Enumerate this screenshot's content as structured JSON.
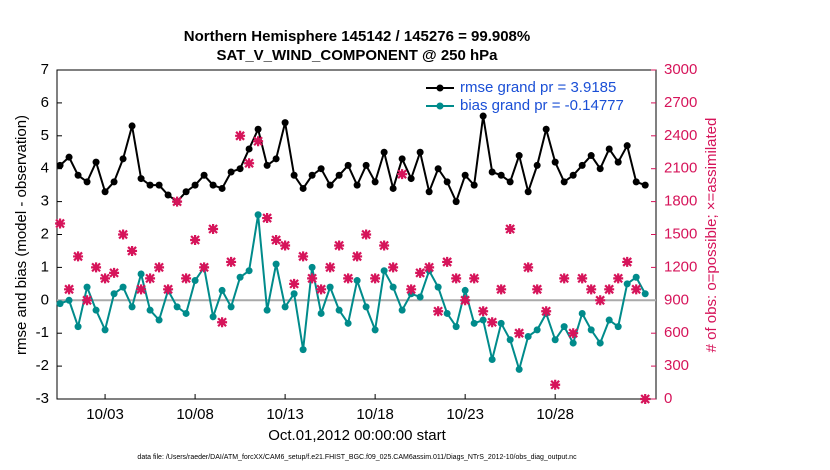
{
  "chart_data": {
    "type": "line",
    "title": [
      "Northern Hemisphere 145142 / 145276 = 99.908%",
      "SAT_V_WIND_COMPONENT @ 250 hPa"
    ],
    "xlabel": "Oct.01,2012 00:00:00 start",
    "ylabel": "rmse and bias (model - observation)",
    "y2label": "# of obs: o=possible; ×=assimilated",
    "footnote": "data file: /Users/raeder/DAI/ATM_forcXX/CAM6_setup/f.e21.FHIST_BGC.f09_025.CAM6assim.011/Diags_NTrS_2012-10/obs_diag_output.nc",
    "x": [
      -0.5,
      0,
      0.5,
      1,
      1.5,
      2,
      2.5,
      3,
      3.5,
      4,
      4.5,
      5,
      5.5,
      6,
      6.5,
      7,
      7.5,
      8,
      8.5,
      9,
      9.5,
      10,
      10.5,
      11,
      11.5,
      12,
      12.5,
      13,
      13.5,
      14,
      14.5,
      15,
      15.5,
      16,
      16.5,
      17,
      17.5,
      18,
      18.5,
      19,
      19.5,
      20,
      20.5,
      21,
      21.5,
      22,
      22.5,
      23,
      23.5,
      24,
      24.5,
      25,
      25.5,
      26,
      26.5,
      27,
      27.5,
      28,
      28.5,
      29,
      29.5,
      30,
      30.5,
      31,
      31.5,
      32
    ],
    "xlim": [
      -0.67,
      32.6
    ],
    "xticks": [
      {
        "value": 2,
        "label": "10/03"
      },
      {
        "value": 7,
        "label": "10/08"
      },
      {
        "value": 12,
        "label": "10/13"
      },
      {
        "value": 17,
        "label": "10/18"
      },
      {
        "value": 22,
        "label": "10/23"
      },
      {
        "value": 27,
        "label": "10/28"
      }
    ],
    "ylim": [
      -3,
      7
    ],
    "yticks": [
      -3,
      -2,
      -1,
      0,
      1,
      2,
      3,
      4,
      5,
      6,
      7
    ],
    "y2lim": [
      0,
      3000
    ],
    "y2ticks": [
      0,
      300,
      600,
      900,
      1200,
      1500,
      1800,
      2100,
      2400,
      2700,
      3000
    ],
    "legend": "upper right",
    "series": [
      {
        "name": "rmse grand pr = 3.9185",
        "color": "#000000",
        "values": [
          4.1,
          4.35,
          3.8,
          3.6,
          4.2,
          3.3,
          3.6,
          4.3,
          5.3,
          3.7,
          3.5,
          3.5,
          3.2,
          3.0,
          3.3,
          3.5,
          3.8,
          3.5,
          3.4,
          3.9,
          4.0,
          4.6,
          5.2,
          4.1,
          4.3,
          5.4,
          3.8,
          3.4,
          3.8,
          4.0,
          3.5,
          3.8,
          4.1,
          3.5,
          4.1,
          3.6,
          4.5,
          3.4,
          4.3,
          3.7,
          4.5,
          3.3,
          4.0,
          3.6,
          3.0,
          3.8,
          3.5,
          5.6,
          3.9,
          3.8,
          3.6,
          4.4,
          3.3,
          4.1,
          5.2,
          4.2,
          3.6,
          3.8,
          4.1,
          4.4,
          4.0,
          4.6,
          4.2,
          4.7,
          3.6,
          3.5
        ]
      },
      {
        "name": "bias grand pr = -0.14777",
        "color": "#008b8b",
        "values": [
          -0.1,
          0,
          -0.8,
          0.4,
          -0.3,
          -0.9,
          0.2,
          0.4,
          -0.2,
          0.8,
          -0.3,
          -0.6,
          0.3,
          -0.2,
          -0.4,
          0.6,
          1.0,
          -0.5,
          0.3,
          -0.2,
          0.7,
          0.9,
          2.6,
          -0.3,
          1.1,
          -0.2,
          0.2,
          -1.5,
          1.0,
          -0.4,
          0.4,
          -0.3,
          -0.7,
          0.6,
          -0.2,
          -0.9,
          0.9,
          0.4,
          -0.3,
          0.2,
          0.1,
          0.9,
          0.4,
          -0.4,
          -0.8,
          0.3,
          -0.7,
          -0.6,
          -1.8,
          -0.7,
          -1.2,
          -2.1,
          -1.1,
          -0.9,
          -0.4,
          -1.2,
          -0.8,
          -1.3,
          -0.4,
          -0.9,
          -1.3,
          -0.6,
          -0.8,
          0.5,
          0.7,
          0.2
        ]
      },
      {
        "color": "#d6145a",
        "axis": "y2",
        "line": false,
        "values": [
          1600,
          1000,
          1300,
          900,
          1200,
          1100,
          1150,
          1500,
          1350,
          1000,
          1100,
          1200,
          1000,
          1800,
          1100,
          1450,
          1200,
          1550,
          700,
          1250,
          2400,
          2150,
          2350,
          1650,
          1450,
          1400,
          1050,
          1300,
          1100,
          1000,
          1200,
          1400,
          1100,
          1300,
          1500,
          1100,
          1400,
          1200,
          2050,
          1000,
          1150,
          1200,
          800,
          1250,
          1100,
          900,
          1100,
          800,
          700,
          1000,
          1550,
          600,
          1200,
          1000,
          800,
          130,
          1100,
          600,
          1100,
          1000,
          900,
          1000,
          1100,
          1250,
          1000,
          0
        ]
      }
    ]
  }
}
